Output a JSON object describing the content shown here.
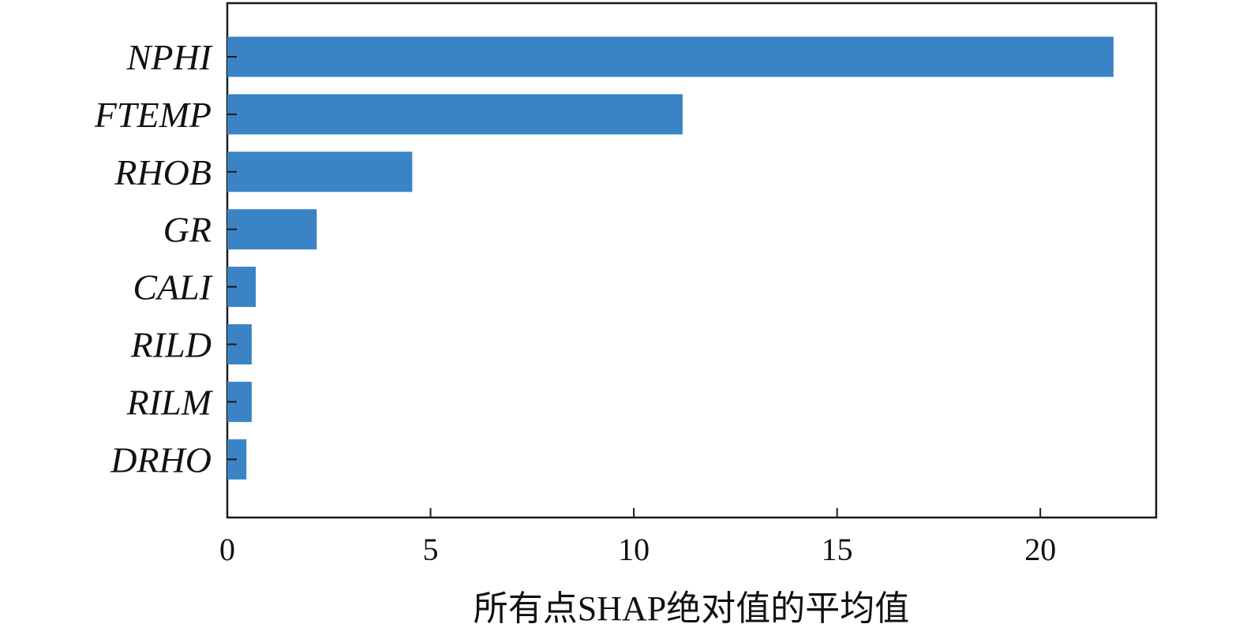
{
  "chart_data": {
    "type": "bar",
    "orientation": "horizontal",
    "categories": [
      "NPHI",
      "FTEMP",
      "RHOB",
      "GR",
      "CALI",
      "RILD",
      "RILM",
      "DRHO"
    ],
    "values": [
      21.8,
      11.2,
      4.55,
      2.2,
      0.7,
      0.6,
      0.6,
      0.47
    ],
    "xlabel": "所有点SHAP绝对值的平均值",
    "ylabel": "",
    "xlim": [
      0,
      22.85
    ],
    "xticks": [
      0,
      5,
      10,
      15,
      20
    ],
    "xtick_labels": [
      "0",
      "5",
      "10",
      "15",
      "20"
    ],
    "grid": false,
    "legend": "none",
    "colors": {
      "bar": "#3a84c6",
      "axis": "#1a1a1a"
    }
  }
}
